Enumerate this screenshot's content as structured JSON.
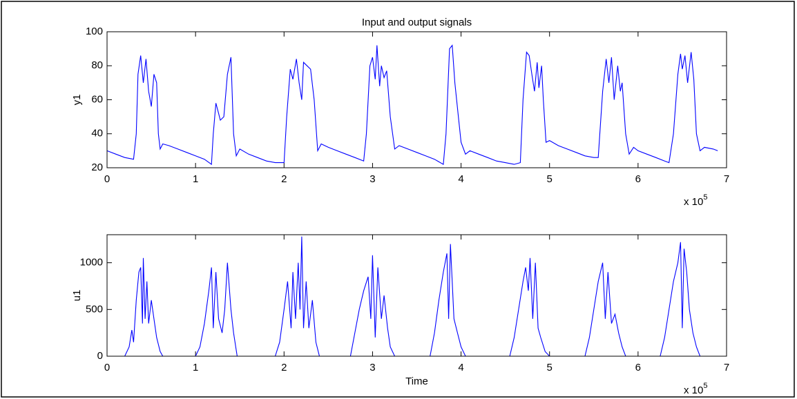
{
  "chart_data": [
    {
      "type": "line",
      "title": "Input and output signals",
      "y_label": "y1",
      "x_multiplier": "x 10",
      "x_exponent": "5",
      "xlim": [
        0,
        7
      ],
      "xticks": [
        0,
        1,
        2,
        3,
        4,
        5,
        6,
        7
      ],
      "ylim": [
        20,
        100
      ],
      "yticks": [
        20,
        40,
        60,
        80,
        100
      ],
      "grid": false,
      "series": [
        {
          "color": "#0000ff",
          "x": [
            0,
            0.1,
            0.2,
            0.3,
            0.33,
            0.35,
            0.38,
            0.41,
            0.44,
            0.47,
            0.5,
            0.53,
            0.56,
            0.58,
            0.6,
            0.63,
            0.7,
            0.8,
            0.9,
            1.0,
            1.1,
            1.18,
            1.2,
            1.23,
            1.26,
            1.28,
            1.32,
            1.36,
            1.4,
            1.43,
            1.46,
            1.5,
            1.6,
            1.7,
            1.8,
            1.9,
            2.0,
            2.03,
            2.07,
            2.1,
            2.14,
            2.17,
            2.2,
            2.22,
            2.26,
            2.3,
            2.34,
            2.38,
            2.42,
            2.5,
            2.6,
            2.7,
            2.8,
            2.9,
            2.93,
            2.97,
            3.0,
            3.03,
            3.05,
            3.08,
            3.1,
            3.13,
            3.16,
            3.2,
            3.25,
            3.3,
            3.4,
            3.5,
            3.6,
            3.7,
            3.8,
            3.83,
            3.87,
            3.9,
            3.93,
            3.97,
            4.0,
            4.05,
            4.1,
            4.2,
            4.3,
            4.4,
            4.5,
            4.6,
            4.67,
            4.7,
            4.74,
            4.77,
            4.8,
            4.83,
            4.86,
            4.88,
            4.91,
            4.93,
            4.96,
            5.0,
            5.1,
            5.2,
            5.3,
            5.4,
            5.5,
            5.55,
            5.6,
            5.64,
            5.67,
            5.7,
            5.73,
            5.77,
            5.8,
            5.82,
            5.86,
            5.9,
            5.95,
            6.0,
            6.1,
            6.2,
            6.3,
            6.35,
            6.4,
            6.45,
            6.48,
            6.5,
            6.53,
            6.56,
            6.6,
            6.63,
            6.66,
            6.7,
            6.75,
            6.85,
            6.9
          ],
          "values": [
            30,
            28,
            26,
            25,
            40,
            75,
            86,
            70,
            84,
            65,
            56,
            75,
            70,
            40,
            31,
            34,
            33,
            31,
            29,
            27,
            25,
            22,
            40,
            58,
            52,
            48,
            50,
            75,
            85,
            40,
            27,
            31,
            28,
            26,
            24,
            23,
            23,
            50,
            78,
            72,
            84,
            70,
            60,
            82,
            80,
            78,
            60,
            30,
            34,
            32,
            30,
            28,
            26,
            24,
            40,
            80,
            85,
            72,
            92,
            68,
            80,
            73,
            77,
            50,
            31,
            33,
            31,
            29,
            27,
            25,
            22,
            40,
            90,
            92,
            70,
            50,
            35,
            28,
            30,
            28,
            26,
            24,
            23,
            22,
            23,
            60,
            88,
            86,
            75,
            65,
            82,
            67,
            80,
            60,
            35,
            36,
            33,
            31,
            29,
            27,
            26,
            26,
            65,
            84,
            70,
            85,
            60,
            80,
            65,
            70,
            40,
            28,
            32,
            30,
            28,
            26,
            24,
            23,
            40,
            75,
            87,
            78,
            86,
            70,
            88,
            72,
            40,
            30,
            32,
            31,
            30
          ]
        }
      ]
    },
    {
      "type": "line",
      "x_label": "Time",
      "y_label": "u1",
      "x_multiplier": "x 10",
      "x_exponent": "5",
      "xlim": [
        0,
        7
      ],
      "xticks": [
        0,
        1,
        2,
        3,
        4,
        5,
        6,
        7
      ],
      "ylim": [
        0,
        1300
      ],
      "yticks": [
        0,
        500,
        1000
      ],
      "grid": false,
      "series": [
        {
          "color": "#0000ff",
          "x": [
            0,
            0.2,
            0.25,
            0.28,
            0.3,
            0.33,
            0.36,
            0.38,
            0.4,
            0.41,
            0.43,
            0.45,
            0.47,
            0.5,
            0.53,
            0.56,
            0.6,
            0.63,
            1.0,
            1.05,
            1.1,
            1.15,
            1.18,
            1.2,
            1.23,
            1.26,
            1.3,
            1.33,
            1.36,
            1.4,
            1.43,
            1.47,
            1.9,
            1.95,
            2.0,
            2.04,
            2.08,
            2.1,
            2.13,
            2.16,
            2.18,
            2.2,
            2.22,
            2.25,
            2.28,
            2.32,
            2.36,
            2.4,
            2.75,
            2.8,
            2.85,
            2.9,
            2.95,
            2.98,
            3.0,
            3.03,
            3.06,
            3.1,
            3.13,
            3.17,
            3.2,
            3.25,
            3.65,
            3.7,
            3.75,
            3.8,
            3.84,
            3.86,
            3.88,
            3.92,
            3.96,
            4.0,
            4.05,
            4.55,
            4.6,
            4.65,
            4.7,
            4.73,
            4.76,
            4.78,
            4.81,
            4.84,
            4.87,
            4.9,
            4.95,
            5.0,
            5.4,
            5.45,
            5.5,
            5.55,
            5.6,
            5.63,
            5.66,
            5.7,
            5.74,
            5.78,
            5.82,
            5.86,
            6.25,
            6.3,
            6.35,
            6.4,
            6.45,
            6.48,
            6.5,
            6.52,
            6.55,
            6.58,
            6.62,
            6.66,
            6.7,
            6.9
          ],
          "values": [
            0,
            0,
            100,
            280,
            150,
            600,
            900,
            950,
            350,
            1050,
            400,
            800,
            350,
            600,
            400,
            200,
            50,
            0,
            0,
            100,
            350,
            700,
            950,
            300,
            900,
            400,
            250,
            500,
            1000,
            500,
            250,
            0,
            0,
            150,
            500,
            800,
            300,
            900,
            400,
            1000,
            500,
            1280,
            300,
            800,
            300,
            600,
            150,
            0,
            0,
            250,
            500,
            700,
            850,
            400,
            1080,
            200,
            950,
            400,
            650,
            300,
            100,
            0,
            0,
            250,
            600,
            900,
            1100,
            400,
            1200,
            400,
            250,
            100,
            0,
            0,
            200,
            500,
            800,
            950,
            700,
            1050,
            400,
            1000,
            300,
            200,
            50,
            0,
            0,
            200,
            500,
            800,
            1000,
            400,
            900,
            350,
            450,
            250,
            100,
            0,
            0,
            200,
            500,
            800,
            1000,
            1220,
            300,
            1150,
            900,
            500,
            250,
            100,
            0,
            0
          ]
        }
      ]
    }
  ]
}
